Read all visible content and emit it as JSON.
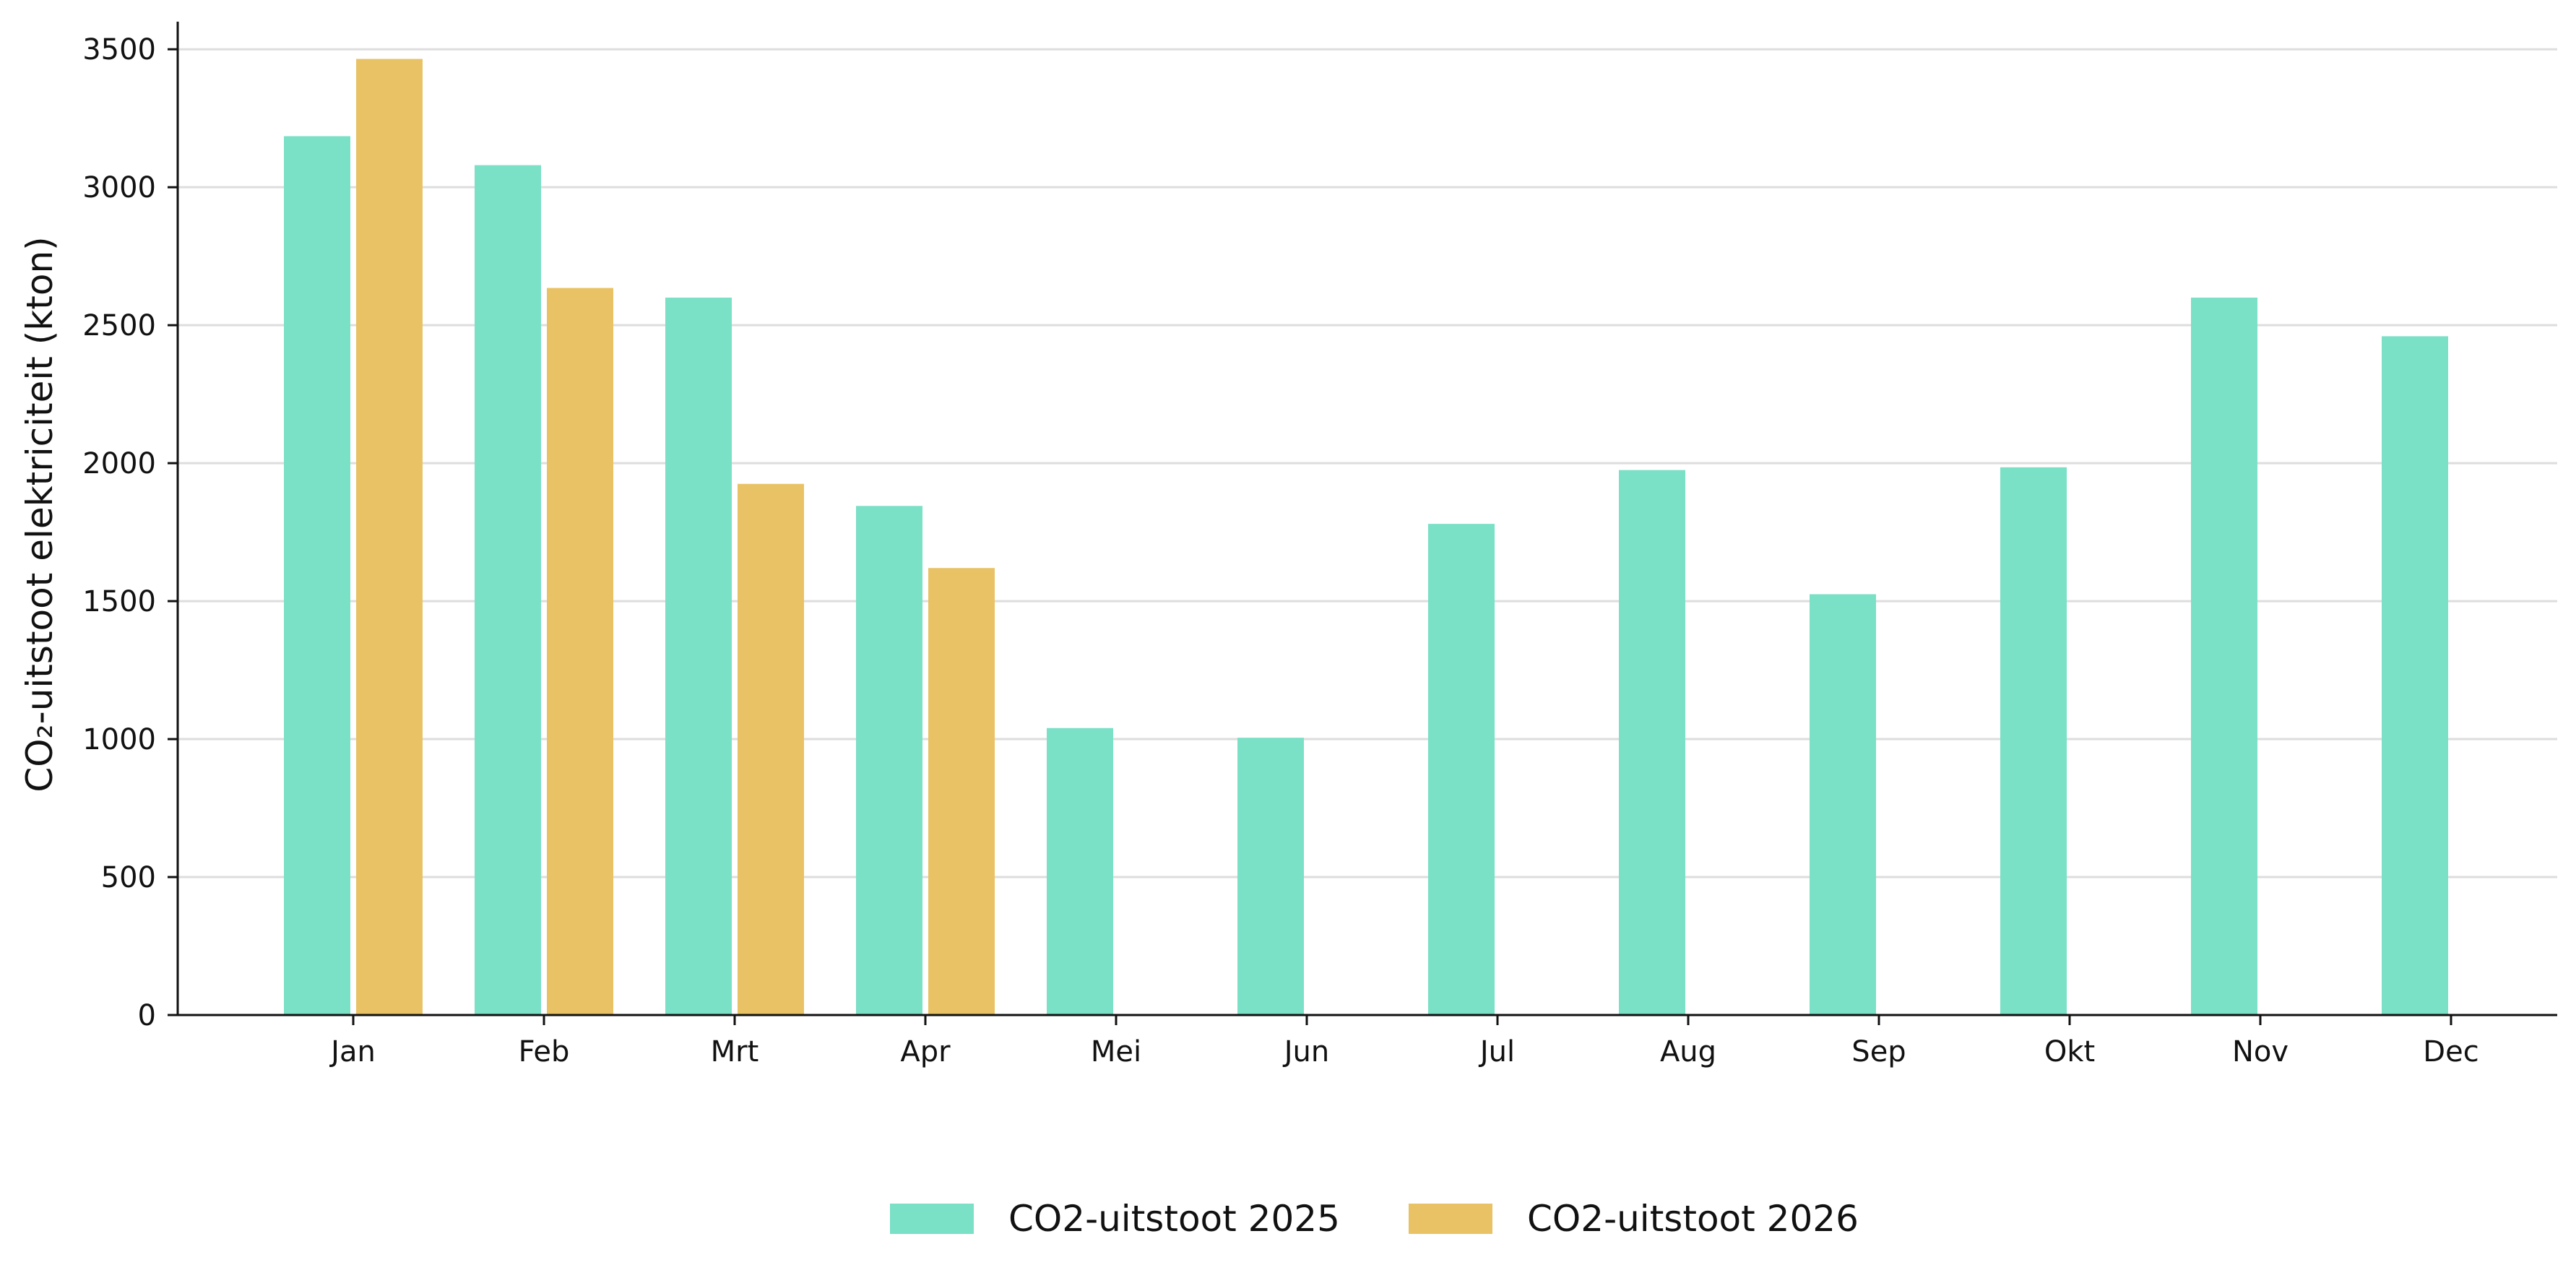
{
  "chart_data": {
    "type": "bar",
    "title": "",
    "xlabel": "",
    "ylabel": "CO₂-uitstoot elektriciteit (kton)",
    "ylim": [
      0,
      3600
    ],
    "yticks": [
      "0",
      "500",
      "1000",
      "1500",
      "2000",
      "2500",
      "3000",
      "3500"
    ],
    "grid": "horizontal",
    "legend_position": "bottom-center",
    "categories": [
      "Jan",
      "Feb",
      "Mrt",
      "Apr",
      "Mei",
      "Jun",
      "Jul",
      "Aug",
      "Sep",
      "Okt",
      "Nov",
      "Dec"
    ],
    "series": [
      {
        "name": "CO2-uitstoot 2025",
        "color": "#7ae0c6",
        "values": [
          3185,
          3080,
          2600,
          1845,
          1040,
          1005,
          1780,
          1975,
          1525,
          1985,
          2600,
          2460
        ]
      },
      {
        "name": "CO2-uitstoot 2026",
        "color": "#e9c266",
        "values": [
          3465,
          2635,
          1925,
          1620,
          null,
          null,
          null,
          null,
          null,
          null,
          null,
          null
        ]
      }
    ]
  }
}
